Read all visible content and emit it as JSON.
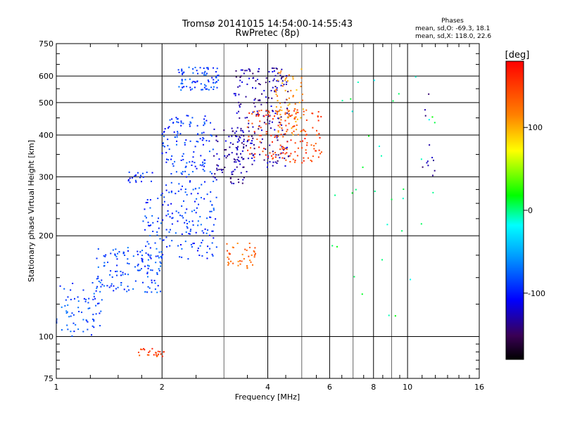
{
  "header": {
    "title": "Tromsø 20141015 14:54:00-14:55:43",
    "subtitle": "RwPretec (8p)",
    "phases_title": "Phases",
    "phases_line1": "mean, sd,O: -69.3, 18.1",
    "phases_line2": "mean, sd,X: 118.0, 22.6"
  },
  "chart_data": {
    "type": "scatter",
    "title": "Tromsø 20141015 14:54:00-14:55:43",
    "subtitle": "RwPretec (8p)",
    "xlabel": "Frequency [MHz]",
    "ylabel": "Stationary phase Virtual Height [km]",
    "x_scale": "log",
    "y_scale": "log",
    "xlim": [
      1,
      16
    ],
    "ylim": [
      75,
      750
    ],
    "x_ticks": [
      1,
      2,
      4,
      6,
      8,
      10,
      16
    ],
    "y_ticks": [
      75,
      100,
      200,
      300,
      400,
      500,
      600,
      750
    ],
    "grid": true,
    "colorbar": {
      "label": "[deg]",
      "range": [
        -180,
        180
      ],
      "ticks": [
        -100,
        0,
        100
      ]
    },
    "clusters": [
      {
        "xr": [
          1.0,
          1.35
        ],
        "yr": [
          100,
          145
        ],
        "phase": -85,
        "n": 70
      },
      {
        "xr": [
          1.3,
          2.0
        ],
        "yr": [
          135,
          185
        ],
        "phase": -85,
        "n": 130
      },
      {
        "xr": [
          1.75,
          2.9
        ],
        "yr": [
          170,
          265
        ],
        "phase": -90,
        "n": 150
      },
      {
        "xr": [
          2.0,
          2.8
        ],
        "yr": [
          265,
          460
        ],
        "phase": -90,
        "n": 150
      },
      {
        "xr": [
          2.2,
          2.9
        ],
        "yr": [
          545,
          640
        ],
        "phase": -85,
        "n": 80
      },
      {
        "xr": [
          1.6,
          1.9
        ],
        "yr": [
          285,
          310
        ],
        "phase": -95,
        "n": 20
      },
      {
        "xr": [
          2.8,
          3.5
        ],
        "yr": [
          285,
          420
        ],
        "phase": -130,
        "n": 90
      },
      {
        "xr": [
          3.2,
          4.6
        ],
        "yr": [
          320,
          640
        ],
        "phase": -130,
        "n": 200
      },
      {
        "xr": [
          3.5,
          5.7
        ],
        "yr": [
          330,
          480
        ],
        "phase": 150,
        "n": 160
      },
      {
        "xr": [
          4.2,
          5.1
        ],
        "yr": [
          400,
          630
        ],
        "phase": 110,
        "n": 70
      },
      {
        "xr": [
          3.0,
          3.7
        ],
        "yr": [
          160,
          190
        ],
        "phase": 130,
        "n": 40
      },
      {
        "xr": [
          1.7,
          2.05
        ],
        "yr": [
          87,
          92
        ],
        "phase": 150,
        "n": 25
      },
      {
        "xr": [
          6.0,
          12.0
        ],
        "yr": [
          110,
          600
        ],
        "phase": 0,
        "n": 35
      },
      {
        "xr": [
          11.0,
          12.0
        ],
        "yr": [
          300,
          600
        ],
        "phase": -140,
        "n": 12
      }
    ]
  }
}
